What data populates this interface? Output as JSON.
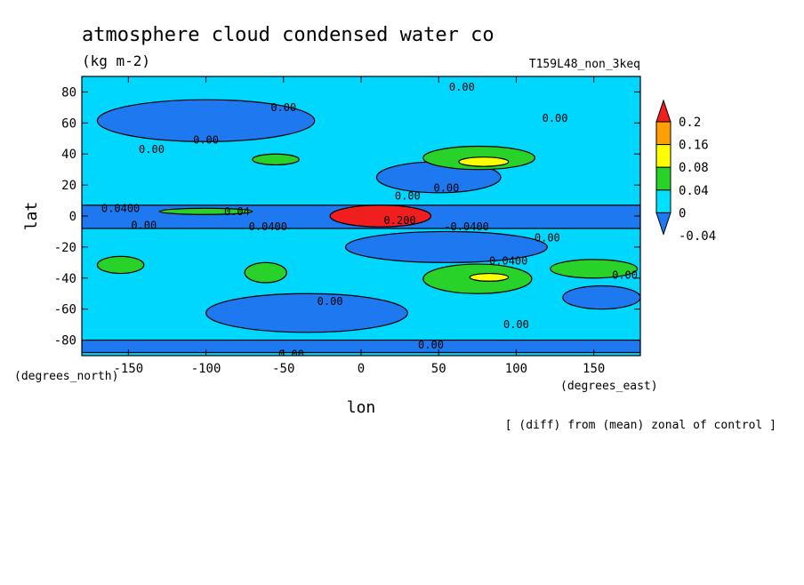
{
  "figure": {
    "title": "atmosphere cloud condensed water co",
    "units": "(kg m-2)",
    "run_label": "T159L48_non_3keq",
    "footnote": "[ (diff) from (mean) zonal of control ]",
    "x_units": "(degrees_east)",
    "y_units": "(degrees_north)"
  },
  "chart_data": {
    "type": "heatmap",
    "title": "atmosphere cloud condensed water co",
    "xlabel": "lon",
    "ylabel": "lat",
    "xlim": [
      -180,
      180
    ],
    "ylim": [
      -90,
      90
    ],
    "x_ticks": [
      -150,
      -100,
      -50,
      0,
      50,
      100,
      150
    ],
    "y_ticks": [
      80,
      60,
      40,
      20,
      0,
      -20,
      -40,
      -60,
      -80
    ],
    "colorbar": {
      "levels": [
        -0.04,
        0,
        0.04,
        0.08,
        0.16,
        0.2
      ],
      "labels": [
        "-0.04",
        "0",
        "0.04",
        "0.08",
        "0.16",
        "0.2"
      ],
      "colors": [
        "#1e78f0",
        "#00e0ff",
        "#28d228",
        "#ffff00",
        "#ffa000",
        "#f01e1e"
      ],
      "below_color": "#1e78f0",
      "above_color": "#f01e1e"
    },
    "base_color": "#00d7ff",
    "regions": [
      {
        "value": "<-0.04",
        "color": "#1e78f0",
        "shape": "band",
        "lon": [
          -180,
          180
        ],
        "lat": [
          -8,
          7
        ]
      },
      {
        "value": "<-0.04",
        "color": "#1e78f0",
        "shape": "band",
        "lon": [
          -180,
          180
        ],
        "lat": [
          -88,
          -80
        ]
      },
      {
        "value": "<-0.04",
        "color": "#1e78f0",
        "shape": "ellipse",
        "lon": [
          -170,
          -30
        ],
        "lat": [
          48,
          75
        ]
      },
      {
        "value": "<-0.04",
        "color": "#1e78f0",
        "shape": "ellipse",
        "lon": [
          -100,
          30
        ],
        "lat": [
          -75,
          -50
        ]
      },
      {
        "value": "<-0.04",
        "color": "#1e78f0",
        "shape": "ellipse",
        "lon": [
          -10,
          120
        ],
        "lat": [
          -30,
          -10
        ]
      },
      {
        "value": "<-0.04",
        "color": "#1e78f0",
        "shape": "ellipse",
        "lon": [
          10,
          90
        ],
        "lat": [
          15,
          35
        ]
      },
      {
        "value": "<-0.04",
        "color": "#1e78f0",
        "shape": "ellipse",
        "lon": [
          130,
          180
        ],
        "lat": [
          -60,
          -45
        ]
      },
      {
        "value": "0.04-0.08",
        "color": "#28d228",
        "shape": "ellipse",
        "lon": [
          40,
          112
        ],
        "lat": [
          30,
          45
        ]
      },
      {
        "value": "0.04-0.08",
        "color": "#28d228",
        "shape": "ellipse",
        "lon": [
          -70,
          -40
        ],
        "lat": [
          33,
          40
        ]
      },
      {
        "value": "0.04-0.08",
        "color": "#28d228",
        "shape": "ellipse",
        "lon": [
          40,
          110
        ],
        "lat": [
          -50,
          -31
        ]
      },
      {
        "value": "0.04-0.08",
        "color": "#28d228",
        "shape": "ellipse",
        "lon": [
          -75,
          -48
        ],
        "lat": [
          -43,
          -30
        ]
      },
      {
        "value": "0.04-0.08",
        "color": "#28d228",
        "shape": "ellipse",
        "lon": [
          -170,
          -140
        ],
        "lat": [
          -37,
          -26
        ]
      },
      {
        "value": "0.04-0.08",
        "color": "#28d228",
        "shape": "ellipse",
        "lon": [
          122,
          178
        ],
        "lat": [
          -40,
          -28
        ]
      },
      {
        "value": "0.04-0.08",
        "color": "#28d228",
        "shape": "ellipse",
        "lon": [
          -130,
          -70
        ],
        "lat": [
          1,
          5
        ]
      },
      {
        "value": "0.08-0.16",
        "color": "#ffff00",
        "shape": "ellipse",
        "lon": [
          63,
          95
        ],
        "lat": [
          32,
          38
        ]
      },
      {
        "value": "0.08-0.16",
        "color": "#ffff00",
        "shape": "ellipse",
        "lon": [
          70,
          95
        ],
        "lat": [
          -42,
          -37
        ]
      },
      {
        "value": ">0.2",
        "color": "#f01e1e",
        "shape": "ellipse",
        "lon": [
          -20,
          45
        ],
        "lat": [
          -7,
          7
        ]
      }
    ],
    "contour_labels": [
      {
        "text": "0.00",
        "lon": 65,
        "lat": 83
      },
      {
        "text": "0.00",
        "lon": -50,
        "lat": 70
      },
      {
        "text": "0.00",
        "lon": 125,
        "lat": 63
      },
      {
        "text": "0.00",
        "lon": -135,
        "lat": 43
      },
      {
        "text": "0.00",
        "lon": -100,
        "lat": 49
      },
      {
        "text": "0.00",
        "lon": 30,
        "lat": 13
      },
      {
        "text": "0.00",
        "lon": 55,
        "lat": 18
      },
      {
        "text": "0.0400",
        "lon": -155,
        "lat": 5
      },
      {
        "text": "0.04",
        "lon": -80,
        "lat": 3
      },
      {
        "text": "0.00",
        "lon": -140,
        "lat": -6
      },
      {
        "text": "0.0400",
        "lon": -60,
        "lat": -7
      },
      {
        "text": "0.200",
        "lon": 25,
        "lat": -3
      },
      {
        "text": "-0.0400",
        "lon": 68,
        "lat": -7
      },
      {
        "text": "0.00",
        "lon": 120,
        "lat": -14
      },
      {
        "text": "0.0400",
        "lon": 95,
        "lat": -29
      },
      {
        "text": "0.00",
        "lon": 170,
        "lat": -38
      },
      {
        "text": "0.00",
        "lon": -20,
        "lat": -55
      },
      {
        "text": "0.00",
        "lon": 100,
        "lat": -70
      },
      {
        "text": "0.00",
        "lon": 45,
        "lat": -83
      },
      {
        "text": "0.00",
        "lon": -45,
        "lat": -89
      }
    ]
  }
}
